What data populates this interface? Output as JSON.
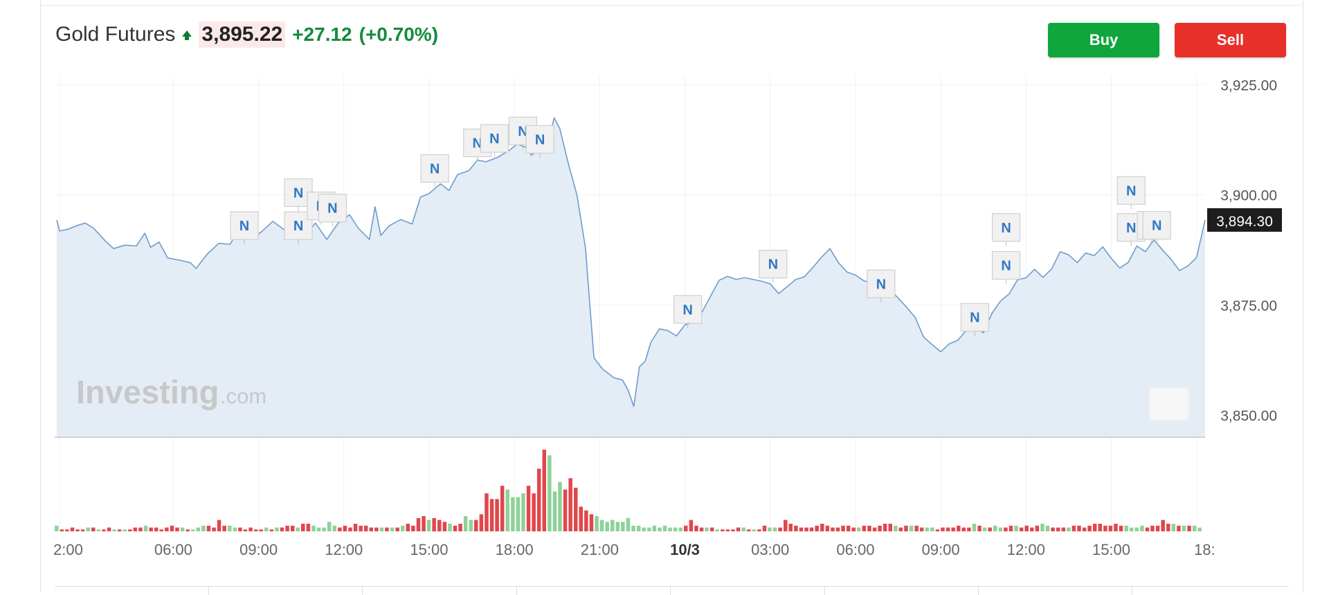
{
  "instrument": {
    "name": "Gold Futures",
    "price": "3,895.22",
    "change": "+27.12",
    "change_pct": "(+0.70%)",
    "direction_icon": "up-arrow-icon",
    "up_color": "#138a3c"
  },
  "actions": {
    "buy_label": "Buy",
    "sell_label": "Sell",
    "buy_color": "#0fa63c",
    "sell_color": "#e8302a"
  },
  "watermark": {
    "brand": "Investing",
    "suffix": ".com"
  },
  "chart_data": {
    "type": "area",
    "ylim": [
      3845,
      3926
    ],
    "y_ticks": [
      3925,
      3900,
      3875,
      3850
    ],
    "y_tick_labels": [
      "3,925.00",
      "3,900.00",
      "3,875.00",
      "3,850.00"
    ],
    "current_value": 3894.3,
    "current_label": "3,894.30",
    "x_tick_labels": [
      "2:00",
      "06:00",
      "09:00",
      "12:00",
      "15:00",
      "18:00",
      "21:00",
      "10/3",
      "03:00",
      "06:00",
      "09:00",
      "12:00",
      "15:00",
      "18:"
    ],
    "x_ticks_hour": [
      2,
      6,
      9,
      12,
      15,
      18,
      21,
      24,
      27,
      30,
      33,
      36,
      39,
      42
    ],
    "xlim_hour": [
      1.9,
      42.3
    ],
    "x_unit": "hours from start of 10/2",
    "series": [
      {
        "values": [
          [
            1.9,
            3894.3
          ],
          [
            2.0,
            3891.8
          ],
          [
            2.3,
            3892.2
          ],
          [
            2.6,
            3893.0
          ],
          [
            2.9,
            3893.6
          ],
          [
            3.2,
            3892.4
          ],
          [
            3.6,
            3889.6
          ],
          [
            3.9,
            3887.8
          ],
          [
            4.3,
            3888.6
          ],
          [
            4.7,
            3888.4
          ],
          [
            5.0,
            3891.3
          ],
          [
            5.2,
            3888.1
          ],
          [
            5.5,
            3889.3
          ],
          [
            5.8,
            3885.7
          ],
          [
            6.2,
            3885.2
          ],
          [
            6.6,
            3884.6
          ],
          [
            6.8,
            3883.3
          ],
          [
            7.2,
            3886.6
          ],
          [
            7.6,
            3889.0
          ],
          [
            8.0,
            3888.8
          ],
          [
            8.4,
            3893.4
          ],
          [
            8.8,
            3890.3
          ],
          [
            9.1,
            3891.6
          ],
          [
            9.5,
            3894.0
          ],
          [
            9.9,
            3892.1
          ],
          [
            10.3,
            3891.9
          ],
          [
            10.7,
            3891.2
          ],
          [
            11.0,
            3893.6
          ],
          [
            11.4,
            3889.9
          ],
          [
            11.8,
            3893.6
          ],
          [
            12.2,
            3895.5
          ],
          [
            12.5,
            3892.5
          ],
          [
            12.9,
            3889.9
          ],
          [
            13.1,
            3897.3
          ],
          [
            13.3,
            3890.8
          ],
          [
            13.6,
            3893.0
          ],
          [
            14.0,
            3894.4
          ],
          [
            14.4,
            3893.4
          ],
          [
            14.7,
            3899.5
          ],
          [
            15.0,
            3900.3
          ],
          [
            15.4,
            3902.5
          ],
          [
            15.7,
            3901.0
          ],
          [
            16.0,
            3904.6
          ],
          [
            16.4,
            3905.5
          ],
          [
            16.7,
            3907.9
          ],
          [
            17.0,
            3907.5
          ],
          [
            17.4,
            3908.5
          ],
          [
            17.8,
            3910.0
          ],
          [
            18.1,
            3911.5
          ],
          [
            18.4,
            3910.8
          ],
          [
            18.6,
            3909.0
          ],
          [
            18.9,
            3910.6
          ],
          [
            19.2,
            3912.3
          ],
          [
            19.4,
            3917.5
          ],
          [
            19.6,
            3915.0
          ],
          [
            19.9,
            3907.0
          ],
          [
            20.2,
            3900.0
          ],
          [
            20.5,
            3888.0
          ],
          [
            20.8,
            3863.0
          ],
          [
            21.1,
            3860.5
          ],
          [
            21.5,
            3858.5
          ],
          [
            21.8,
            3858.0
          ],
          [
            22.0,
            3855.7
          ],
          [
            22.2,
            3852.0
          ],
          [
            22.4,
            3861.0
          ],
          [
            22.6,
            3862.2
          ],
          [
            22.8,
            3866.5
          ],
          [
            23.1,
            3869.6
          ],
          [
            23.4,
            3869.2
          ],
          [
            23.7,
            3868.0
          ],
          [
            24.0,
            3870.5
          ],
          [
            24.3,
            3871.2
          ],
          [
            24.6,
            3873.4
          ],
          [
            24.9,
            3877.0
          ],
          [
            25.2,
            3880.6
          ],
          [
            25.5,
            3881.5
          ],
          [
            25.8,
            3880.8
          ],
          [
            26.1,
            3881.2
          ],
          [
            26.4,
            3880.8
          ],
          [
            26.7,
            3880.4
          ],
          [
            27.0,
            3879.8
          ],
          [
            27.3,
            3877.6
          ],
          [
            27.6,
            3879.2
          ],
          [
            27.9,
            3880.8
          ],
          [
            28.2,
            3881.4
          ],
          [
            28.5,
            3883.5
          ],
          [
            28.8,
            3885.8
          ],
          [
            29.1,
            3887.8
          ],
          [
            29.4,
            3884.6
          ],
          [
            29.7,
            3882.5
          ],
          [
            30.0,
            3881.8
          ],
          [
            30.3,
            3880.5
          ],
          [
            30.6,
            3880.0
          ],
          [
            30.9,
            3879.0
          ],
          [
            31.2,
            3878.6
          ],
          [
            31.5,
            3876.6
          ],
          [
            31.8,
            3874.5
          ],
          [
            32.1,
            3872.2
          ],
          [
            32.4,
            3867.7
          ],
          [
            32.7,
            3866.0
          ],
          [
            33.0,
            3864.4
          ],
          [
            33.3,
            3866.2
          ],
          [
            33.6,
            3867.0
          ],
          [
            33.9,
            3869.3
          ],
          [
            34.2,
            3870.0
          ],
          [
            34.5,
            3868.7
          ],
          [
            34.8,
            3873.1
          ],
          [
            35.1,
            3875.9
          ],
          [
            35.4,
            3877.5
          ],
          [
            35.7,
            3880.7
          ],
          [
            36.0,
            3881.2
          ],
          [
            36.3,
            3883.1
          ],
          [
            36.6,
            3881.3
          ],
          [
            36.9,
            3883.2
          ],
          [
            37.2,
            3887.1
          ],
          [
            37.5,
            3886.4
          ],
          [
            37.8,
            3884.6
          ],
          [
            38.1,
            3886.8
          ],
          [
            38.4,
            3886.2
          ],
          [
            38.7,
            3888.2
          ],
          [
            39.0,
            3885.6
          ],
          [
            39.3,
            3883.4
          ],
          [
            39.6,
            3884.7
          ],
          [
            39.9,
            3888.4
          ],
          [
            40.2,
            3887.1
          ],
          [
            40.5,
            3889.8
          ],
          [
            40.8,
            3887.5
          ],
          [
            41.1,
            3885.4
          ],
          [
            41.4,
            3882.8
          ],
          [
            41.7,
            3883.9
          ],
          [
            42.0,
            3885.8
          ],
          [
            42.3,
            3894.3
          ]
        ]
      }
    ],
    "news_markers": [
      {
        "label": "N",
        "h": 8.5,
        "y": 3893.0
      },
      {
        "label": "N",
        "h": 10.4,
        "y": 3900.5
      },
      {
        "label": "N",
        "h": 10.4,
        "y": 3893.0
      },
      {
        "label": "N",
        "h": 11.2,
        "y": 3897.5
      },
      {
        "label": "N",
        "h": 11.6,
        "y": 3897.0
      },
      {
        "label": "N",
        "h": 15.2,
        "y": 3906.0
      },
      {
        "label": "N",
        "h": 16.7,
        "y": 3911.8
      },
      {
        "label": "N",
        "h": 17.3,
        "y": 3912.8
      },
      {
        "label": "N",
        "h": 18.3,
        "y": 3914.5
      },
      {
        "label": "N",
        "h": 18.9,
        "y": 3912.6
      },
      {
        "label": "N",
        "h": 24.1,
        "y": 3874.0
      },
      {
        "label": "N",
        "h": 27.1,
        "y": 3884.3
      },
      {
        "label": "N",
        "h": 30.9,
        "y": 3879.8
      },
      {
        "label": "N",
        "h": 34.2,
        "y": 3872.2
      },
      {
        "label": "N",
        "h": 35.3,
        "y": 3892.6
      },
      {
        "label": "N",
        "h": 35.3,
        "y": 3884.0
      },
      {
        "label": "N",
        "h": 39.7,
        "y": 3901.0
      },
      {
        "label": "N",
        "h": 39.7,
        "y": 3892.6
      },
      {
        "label": "N",
        "h": 40.4,
        "y": 3893.1
      },
      {
        "label": "N",
        "h": 40.6,
        "y": 3893.1
      }
    ],
    "volume": {
      "up_color": "#8fd199",
      "down_color": "#e0474c",
      "values": [
        3,
        1,
        1,
        2,
        1,
        1,
        2,
        2,
        1,
        1,
        2,
        1,
        1,
        1,
        1,
        2,
        2,
        3,
        2,
        2,
        1,
        2,
        3,
        2,
        2,
        1,
        1,
        2,
        3,
        3,
        2,
        6,
        3,
        3,
        2,
        2,
        1,
        2,
        1,
        1,
        2,
        1,
        2,
        2,
        3,
        3,
        2,
        4,
        4,
        3,
        2,
        2,
        5,
        3,
        2,
        3,
        2,
        4,
        3,
        3,
        2,
        2,
        2,
        2,
        2,
        2,
        3,
        4,
        3,
        7,
        8,
        6,
        7,
        6,
        5,
        4,
        3,
        4,
        8,
        6,
        6,
        9,
        20,
        17,
        17,
        24,
        22,
        18,
        18,
        20,
        24,
        20,
        33,
        43,
        40,
        21,
        26,
        22,
        28,
        23,
        13,
        11,
        9,
        8,
        6,
        5,
        6,
        5,
        5,
        7,
        3,
        3,
        2,
        2,
        3,
        2,
        3,
        2,
        2,
        2,
        3,
        6,
        3,
        2,
        2,
        2,
        1,
        1,
        1,
        1,
        2,
        2,
        1,
        1,
        1,
        3,
        2,
        2,
        2,
        6,
        4,
        3,
        2,
        2,
        2,
        3,
        4,
        3,
        2,
        2,
        3,
        3,
        2,
        2,
        3,
        3,
        2,
        3,
        4,
        4,
        3,
        2,
        3,
        3,
        3,
        2,
        2,
        2,
        1,
        2,
        2,
        2,
        3,
        2,
        2,
        4,
        3,
        2,
        2,
        3,
        2,
        2,
        3,
        3,
        2,
        3,
        2,
        3,
        4,
        3,
        2,
        2,
        2,
        2,
        3,
        3,
        2,
        3,
        4,
        4,
        3,
        3,
        4,
        3,
        3,
        2,
        2,
        3,
        2,
        3,
        3,
        6,
        4,
        4,
        3,
        3,
        3,
        3,
        2
      ],
      "directions": "udddddududdududddudddddduduuudddduudddddududddudduuuuuddddddddudududdddudddudduudddddduuuudddduuudddddduuuuuuuuuuuuuuuuuddddududdddududduudddddddddddddddudddddduddudduudddddddududuuddudddduudddudddddddddduuuudddddududuudddududduuddudddudddudddddddu"
    }
  }
}
